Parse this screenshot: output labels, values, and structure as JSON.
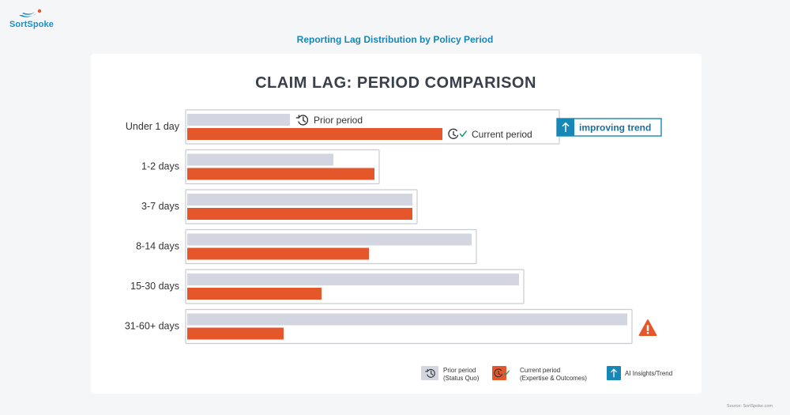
{
  "header": {
    "brand": "SortSpoke",
    "subtitle": "Reporting Lag Distribution by Policy Period"
  },
  "chart_data": {
    "type": "bar",
    "orientation": "horizontal",
    "title": "CLAIM LAG: PERIOD COMPARISON",
    "categories": [
      "Under 1 day",
      "1-2 days",
      "3-7 days",
      "8-14 days",
      "15-30 days",
      "31-60+ days"
    ],
    "series": [
      {
        "name": "Prior period",
        "color": "#d3d6e0",
        "values": [
          13,
          18.5,
          28.5,
          36,
          42,
          55.7
        ]
      },
      {
        "name": "Current period",
        "color": "#e5562a",
        "values": [
          32.3,
          23.7,
          28.5,
          23,
          17,
          12.2
        ]
      }
    ],
    "xlim": [
      0,
      56
    ],
    "bar_annotations": [
      {
        "category": "Under 1 day",
        "series": "Prior period",
        "text": "Prior period",
        "icon": "history-clock-icon"
      },
      {
        "category": "Under 1 day",
        "series": "Current period",
        "text": "Current period",
        "icon": "clock-check-icon"
      }
    ],
    "callouts": [
      {
        "category": "Under 1 day",
        "text": "improving trend",
        "icon": "up-arrow-icon",
        "color": "#1787b7"
      },
      {
        "category": "31-60+ days",
        "text": "",
        "icon": "warning-triangle-icon",
        "color": "#e5562a"
      }
    ],
    "legend": {
      "position": "bottom-right",
      "items": [
        {
          "label_line1": "Prior period",
          "label_line2": "(Status Quo)",
          "icon": "history-clock-icon"
        },
        {
          "label_line1": "Current period",
          "label_line2": "(Expertise & Outcomes)",
          "icon": "clock-check-icon"
        },
        {
          "label_line1": "AI Insights/Trend",
          "label_line2": "",
          "icon": "up-arrow-icon"
        }
      ]
    },
    "grid": false
  },
  "footer": {
    "source": "Source: SortSpoke.com"
  }
}
